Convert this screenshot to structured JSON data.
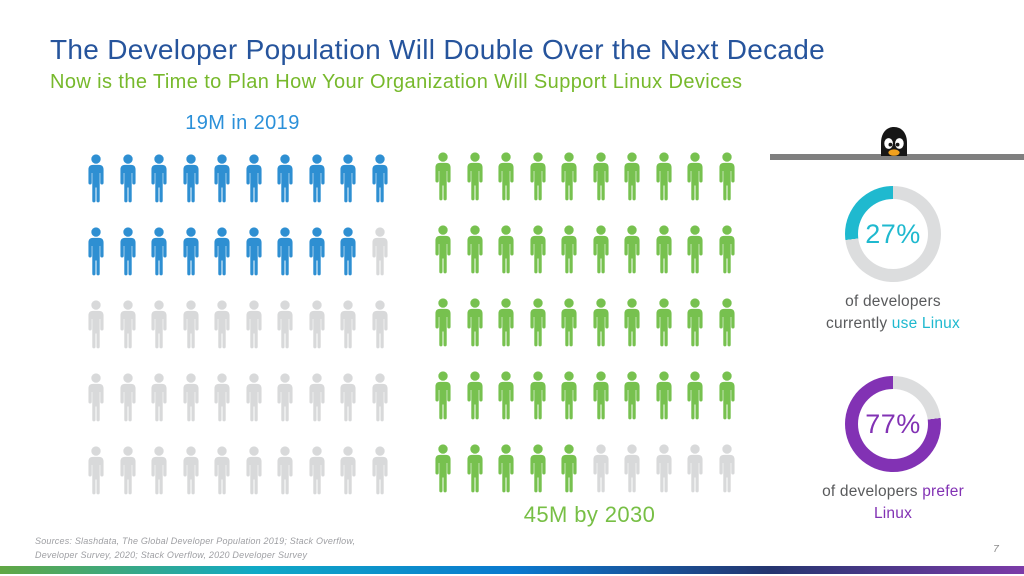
{
  "slide": {
    "title": "The Developer Population Will Double Over the Next Decade",
    "subtitle": "Now is the Time to Plan How Your Organization Will Support Linux Devices",
    "sources": "Sources: Slashdata, The Global Developer Population 2019; Stack Overflow,\nDeveloper Survey, 2020; Stack Overflow, 2020 Developer Survey",
    "page_number": "7"
  },
  "colors": {
    "title": "#26549C",
    "subtitle": "#77B92C",
    "caption_text": "#595A5C",
    "divider_bar": "#7F7F7F",
    "sources_text": "#9E9FA3",
    "page_number": "#8A8A8A",
    "penguin_body": "#161616",
    "penguin_beak": "#F2A11E",
    "footer_gradient": [
      "#61A744",
      "#10A9C6",
      "#0A79CF",
      "#24356F",
      "#7C3BA8"
    ]
  },
  "chart_data": [
    {
      "type": "pictograph",
      "id": "devs-2019",
      "title": "19M in 2019",
      "label_position": "above",
      "value_millions": 19,
      "year": "2019",
      "unit_per_icon": "1M developers",
      "total_units": 50,
      "filled_units": 19,
      "icons_per_row": 10,
      "fill_color": "#2E8FD2",
      "empty_color": "#D8D9DA",
      "label_color": "#2B90D9"
    },
    {
      "type": "pictograph",
      "id": "devs-2030",
      "title": "45M by 2030",
      "label_position": "below",
      "value_millions": 45,
      "year": "2030",
      "unit_per_icon": "1M developers",
      "total_units": 50,
      "filled_units": 45,
      "icons_per_row": 10,
      "fill_color": "#77C14F",
      "empty_color": "#D8D9DA",
      "label_color": "#77BF45"
    },
    {
      "type": "donut",
      "id": "use-linux",
      "percent": 27,
      "center_label": "27%",
      "color": "#1FB9CF",
      "track_color": "#DCDDDE",
      "start": "top",
      "direction": "counterclockwise",
      "caption": {
        "plain": "of developers currently ",
        "highlighted": "use Linux"
      }
    },
    {
      "type": "donut",
      "id": "prefer-linux",
      "percent": 77,
      "center_label": "77%",
      "color": "#8232B4",
      "track_color": "#DCDDDE",
      "start": "top",
      "direction": "counterclockwise",
      "caption": {
        "plain": "of developers ",
        "highlighted": "prefer Linux"
      }
    }
  ]
}
